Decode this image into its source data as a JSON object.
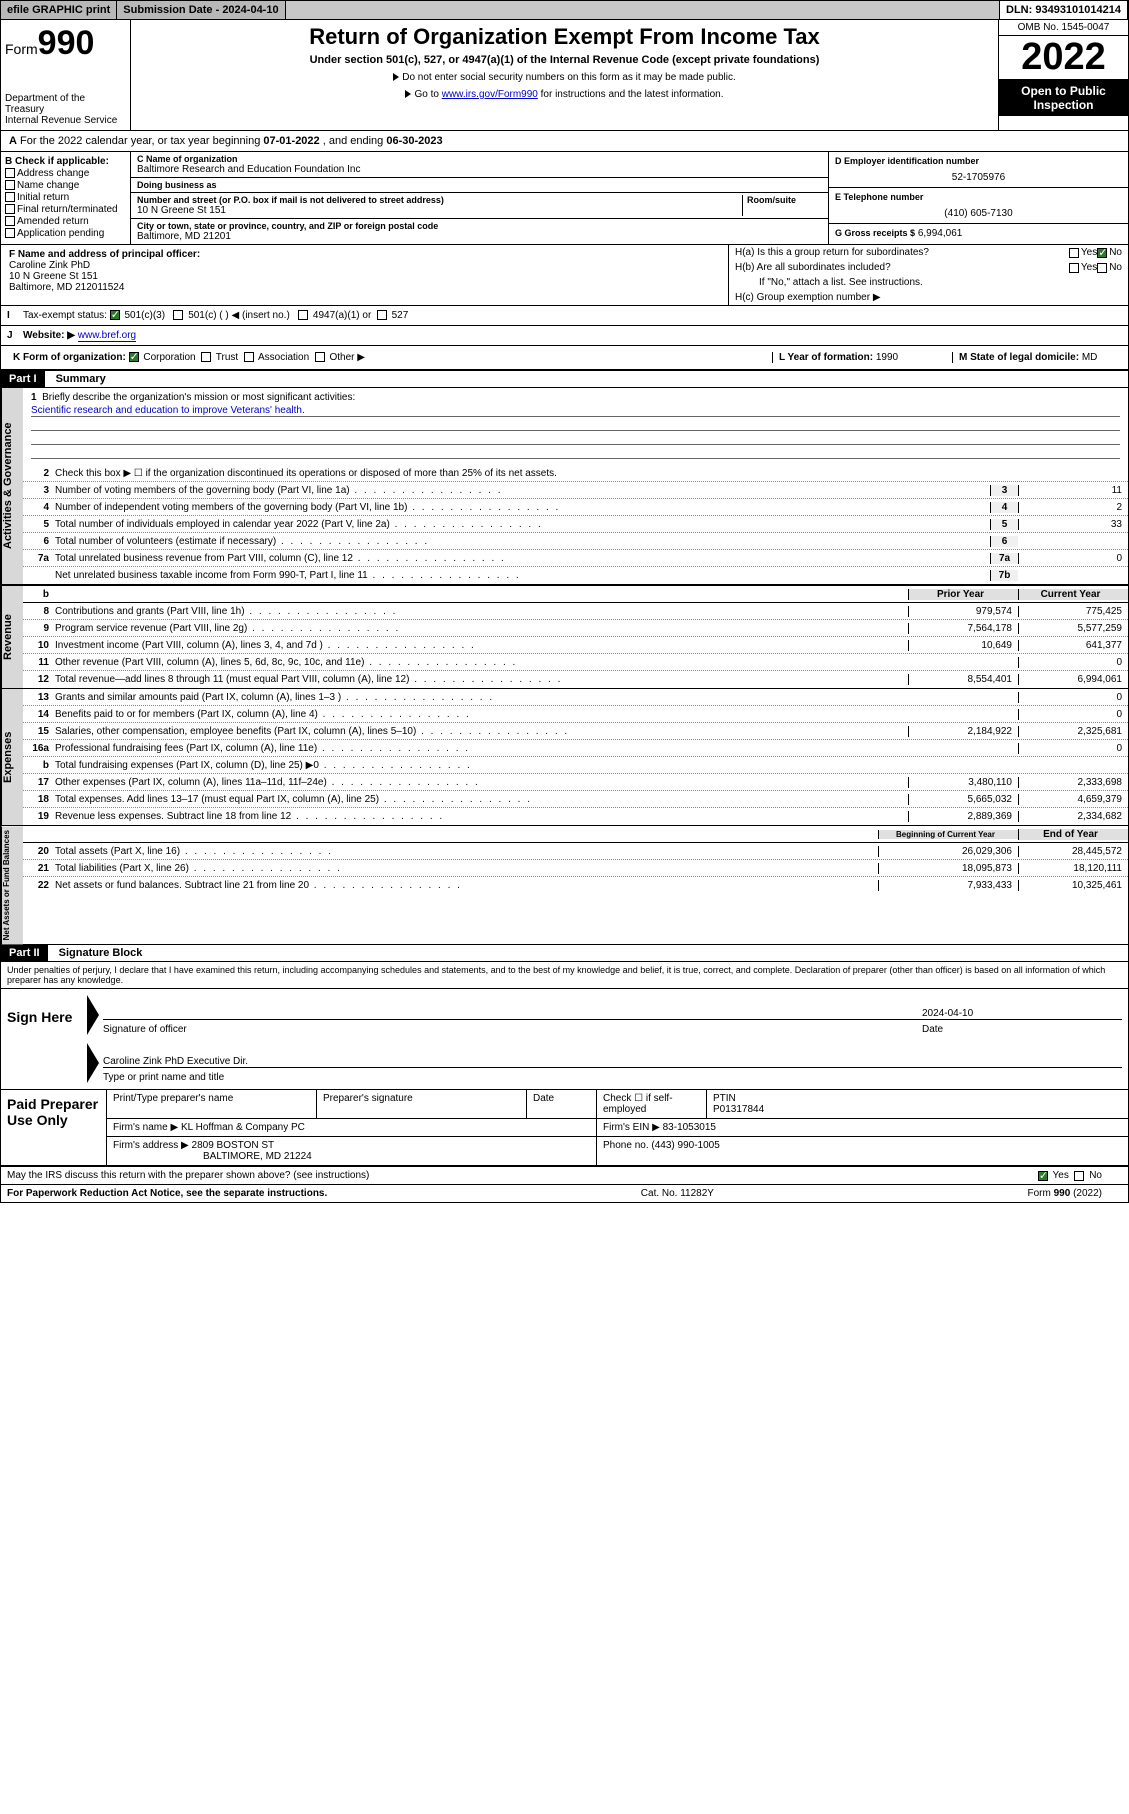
{
  "topbar": {
    "efile": "efile GRAPHIC print",
    "submission_label": "Submission Date - 2024-04-10",
    "dln": "DLN: 93493101014214"
  },
  "header": {
    "form_label": "Form",
    "form_number": "990",
    "dept": "Department of the Treasury\nInternal Revenue Service",
    "title": "Return of Organization Exempt From Income Tax",
    "subtitle": "Under section 501(c), 527, or 4947(a)(1) of the Internal Revenue Code (except private foundations)",
    "instr1": "Do not enter social security numbers on this form as it may be made public.",
    "instr2_pre": "Go to ",
    "instr2_link": "www.irs.gov/Form990",
    "instr2_post": " for instructions and the latest information.",
    "omb": "OMB No. 1545-0047",
    "year": "2022",
    "open": "Open to Public Inspection"
  },
  "period": {
    "label_a": "A",
    "text": "For the 2022 calendar year, or tax year beginning ",
    "begin": "07-01-2022",
    "mid": " , and ending ",
    "end": "06-30-2023"
  },
  "colB": {
    "label": "B Check if applicable:",
    "options": [
      "Address change",
      "Name change",
      "Initial return",
      "Final return/terminated",
      "Amended return",
      "Application pending"
    ]
  },
  "colC": {
    "name_label": "C Name of organization",
    "name": "Baltimore Research and Education Foundation Inc",
    "dba_label": "Doing business as",
    "dba": "",
    "addr_label": "Number and street (or P.O. box if mail is not delivered to street address)",
    "room_label": "Room/suite",
    "addr": "10 N Greene St 151",
    "city_label": "City or town, state or province, country, and ZIP or foreign postal code",
    "city": "Baltimore, MD  21201"
  },
  "colD": {
    "ein_label": "D Employer identification number",
    "ein": "52-1705976",
    "phone_label": "E Telephone number",
    "phone": "(410) 605-7130",
    "gross_label": "G Gross receipts $",
    "gross": "6,994,061"
  },
  "rowF": {
    "label": "F Name and address of principal officer:",
    "name": "Caroline Zink PhD",
    "addr1": "10 N Greene St 151",
    "addr2": "Baltimore, MD  212011524"
  },
  "rowH": {
    "a_label": "H(a)  Is this a group return for subordinates?",
    "a_yes": "Yes",
    "a_no": "No",
    "b_label": "H(b)  Are all subordinates included?",
    "b_yes": "Yes",
    "b_no": "No",
    "b_note": "If \"No,\" attach a list. See instructions.",
    "c_label": "H(c)  Group exemption number ▶"
  },
  "rowI": {
    "label": "Tax-exempt status:",
    "o1": "501(c)(3)",
    "o2": "501(c) (  ) ◀ (insert no.)",
    "o3": "4947(a)(1) or",
    "o4": "527"
  },
  "rowJ": {
    "label": "Website: ▶",
    "val": "www.bref.org"
  },
  "rowK": {
    "label": "K Form of organization:",
    "o1": "Corporation",
    "o2": "Trust",
    "o3": "Association",
    "o4": "Other ▶"
  },
  "rowL": {
    "label": "L Year of formation:",
    "val": "1990"
  },
  "rowM": {
    "label": "M State of legal domicile:",
    "val": "MD"
  },
  "part1": {
    "label": "Part I",
    "title": "Summary"
  },
  "summary": {
    "line1_label": "Briefly describe the organization's mission or most significant activities:",
    "line1_val": "Scientific research and education to improve Veterans' health.",
    "line2": "Check this box ▶ ☐  if the organization discontinued its operations or disposed of more than 25% of its net assets.",
    "lines_gov": [
      {
        "n": "3",
        "t": "Number of voting members of the governing body (Part VI, line 1a)",
        "nc": "3",
        "v": "11"
      },
      {
        "n": "4",
        "t": "Number of independent voting members of the governing body (Part VI, line 1b)",
        "nc": "4",
        "v": "2"
      },
      {
        "n": "5",
        "t": "Total number of individuals employed in calendar year 2022 (Part V, line 2a)",
        "nc": "5",
        "v": "33"
      },
      {
        "n": "6",
        "t": "Total number of volunteers (estimate if necessary)",
        "nc": "6",
        "v": ""
      },
      {
        "n": "7a",
        "t": "Total unrelated business revenue from Part VIII, column (C), line 12",
        "nc": "7a",
        "v": "0"
      },
      {
        "n": "",
        "t": "Net unrelated business taxable income from Form 990-T, Part I, line 11",
        "nc": "7b",
        "v": ""
      }
    ],
    "col_hdr_prior": "Prior Year",
    "col_hdr_curr": "Current Year",
    "revenue": [
      {
        "n": "8",
        "t": "Contributions and grants (Part VIII, line 1h)",
        "p": "979,574",
        "c": "775,425"
      },
      {
        "n": "9",
        "t": "Program service revenue (Part VIII, line 2g)",
        "p": "7,564,178",
        "c": "5,577,259"
      },
      {
        "n": "10",
        "t": "Investment income (Part VIII, column (A), lines 3, 4, and 7d )",
        "p": "10,649",
        "c": "641,377"
      },
      {
        "n": "11",
        "t": "Other revenue (Part VIII, column (A), lines 5, 6d, 8c, 9c, 10c, and 11e)",
        "p": "",
        "c": "0"
      },
      {
        "n": "12",
        "t": "Total revenue—add lines 8 through 11 (must equal Part VIII, column (A), line 12)",
        "p": "8,554,401",
        "c": "6,994,061"
      }
    ],
    "expenses": [
      {
        "n": "13",
        "t": "Grants and similar amounts paid (Part IX, column (A), lines 1–3 )",
        "p": "",
        "c": "0"
      },
      {
        "n": "14",
        "t": "Benefits paid to or for members (Part IX, column (A), line 4)",
        "p": "",
        "c": "0"
      },
      {
        "n": "15",
        "t": "Salaries, other compensation, employee benefits (Part IX, column (A), lines 5–10)",
        "p": "2,184,922",
        "c": "2,325,681"
      },
      {
        "n": "16a",
        "t": "Professional fundraising fees (Part IX, column (A), line 11e)",
        "p": "",
        "c": "0"
      },
      {
        "n": "b",
        "t": "Total fundraising expenses (Part IX, column (D), line 25) ▶0",
        "p": "__gray__",
        "c": "__gray__"
      },
      {
        "n": "17",
        "t": "Other expenses (Part IX, column (A), lines 11a–11d, 11f–24e)",
        "p": "3,480,110",
        "c": "2,333,698"
      },
      {
        "n": "18",
        "t": "Total expenses. Add lines 13–17 (must equal Part IX, column (A), line 25)",
        "p": "5,665,032",
        "c": "4,659,379"
      },
      {
        "n": "19",
        "t": "Revenue less expenses. Subtract line 18 from line 12",
        "p": "2,889,369",
        "c": "2,334,682"
      }
    ],
    "col_hdr_begin": "Beginning of Current Year",
    "col_hdr_end": "End of Year",
    "netassets": [
      {
        "n": "20",
        "t": "Total assets (Part X, line 16)",
        "p": "26,029,306",
        "c": "28,445,572"
      },
      {
        "n": "21",
        "t": "Total liabilities (Part X, line 26)",
        "p": "18,095,873",
        "c": "18,120,111"
      },
      {
        "n": "22",
        "t": "Net assets or fund balances. Subtract line 21 from line 20",
        "p": "7,933,433",
        "c": "10,325,461"
      }
    ]
  },
  "part2": {
    "label": "Part II",
    "title": "Signature Block"
  },
  "declaration": "Under penalties of perjury, I declare that I have examined this return, including accompanying schedules and statements, and to the best of my knowledge and belief, it is true, correct, and complete. Declaration of preparer (other than officer) is based on all information of which preparer has any knowledge.",
  "sign": {
    "here": "Sign Here",
    "officer_sig": "Signature of officer",
    "date": "2024-04-10",
    "date_lbl": "Date",
    "name_title": "Caroline Zink PhD  Executive Dir.",
    "name_title_lbl": "Type or print name and title"
  },
  "preparer": {
    "label": "Paid Preparer Use Only",
    "cols": [
      "Print/Type preparer's name",
      "Preparer's signature",
      "Date"
    ],
    "check_lbl": "Check ☐ if self-employed",
    "ptin_lbl": "PTIN",
    "ptin": "P01317844",
    "firm_name_lbl": "Firm's name    ▶",
    "firm_name": "KL Hoffman & Company PC",
    "firm_ein_lbl": "Firm's EIN ▶",
    "firm_ein": "83-1053015",
    "firm_addr_lbl": "Firm's address ▶",
    "firm_addr1": "2809 BOSTON ST",
    "firm_addr2": "BALTIMORE, MD  21224",
    "phone_lbl": "Phone no.",
    "phone": "(443) 990-1005"
  },
  "discuss": {
    "q": "May the IRS discuss this return with the preparer shown above? (see instructions)",
    "yes": "Yes",
    "no": "No"
  },
  "footer": {
    "pra": "For Paperwork Reduction Act Notice, see the separate instructions.",
    "cat": "Cat. No. 11282Y",
    "form": "Form 990 (2022)"
  },
  "vtabs": {
    "gov": "Activities & Governance",
    "rev": "Revenue",
    "exp": "Expenses",
    "net": "Net Assets or Fund Balances"
  }
}
